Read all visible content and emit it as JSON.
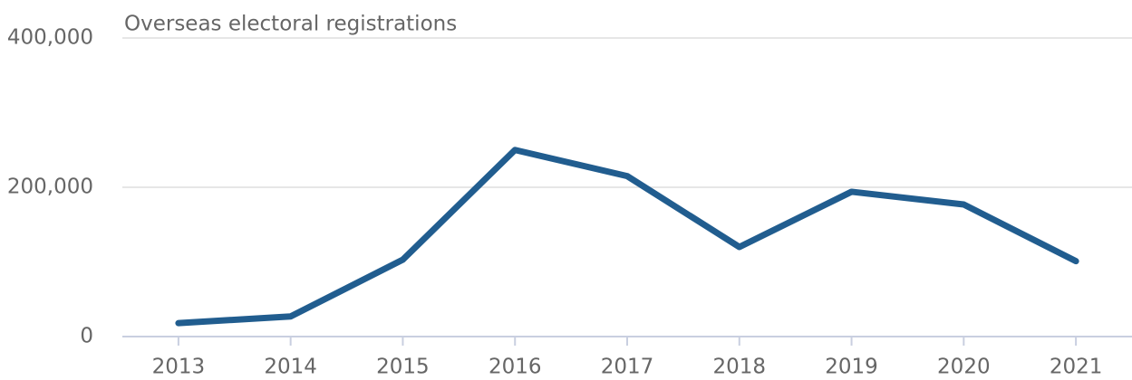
{
  "chart_data": {
    "type": "line",
    "title": "Overseas electoral registrations",
    "categories": [
      "2013",
      "2014",
      "2015",
      "2016",
      "2017",
      "2018",
      "2019",
      "2020",
      "2021"
    ],
    "series": [
      {
        "name": "Overseas electoral registrations",
        "color": "#215d8f",
        "values": [
          18000,
          27000,
          103000,
          250000,
          215000,
          120000,
          194000,
          177000,
          101000
        ]
      }
    ],
    "ylim": [
      0,
      400000
    ],
    "yticks": [
      0,
      {
        "value": 200000,
        "label": "200,000"
      },
      {
        "value": 400000,
        "label": "400,000"
      }
    ],
    "grid": true
  }
}
